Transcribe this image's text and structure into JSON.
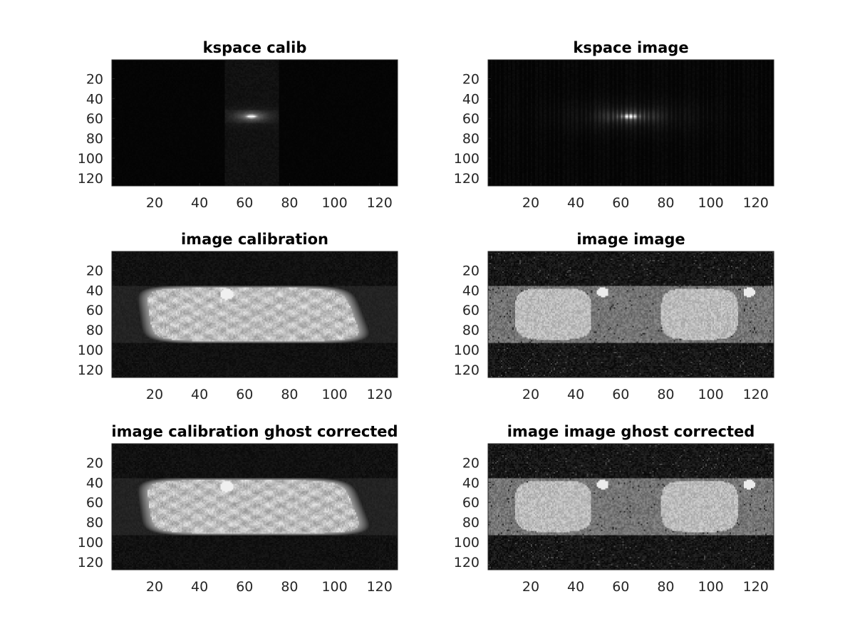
{
  "chart_data": [
    {
      "type": "heatmap",
      "id": "kspace_calib",
      "title": "kspace calib",
      "colormap": "gray",
      "xlim": [
        1,
        128
      ],
      "ylim": [
        1,
        128
      ],
      "y_reversed": true,
      "xticks": [
        20,
        40,
        60,
        80,
        100,
        120
      ],
      "yticks": [
        20,
        40,
        60,
        80,
        100,
        120
      ],
      "content": "kspace",
      "kspace_band": [
        51,
        75
      ],
      "peak": [
        63,
        58
      ]
    },
    {
      "type": "heatmap",
      "id": "kspace_image",
      "title": "kspace image",
      "colormap": "gray",
      "xlim": [
        1,
        128
      ],
      "ylim": [
        1,
        128
      ],
      "y_reversed": true,
      "xticks": [
        20,
        40,
        60,
        80,
        100,
        120
      ],
      "yticks": [
        20,
        40,
        60,
        80,
        100,
        120
      ],
      "content": "kspace-undersampled",
      "peak": [
        64,
        58
      ]
    },
    {
      "type": "heatmap",
      "id": "image_calibration",
      "title": "image calibration",
      "colormap": "gray",
      "xlim": [
        1,
        128
      ],
      "ylim": [
        1,
        128
      ],
      "y_reversed": true,
      "xticks": [
        20,
        40,
        60,
        80,
        100,
        120
      ],
      "yticks": [
        20,
        40,
        60,
        80,
        100,
        120
      ],
      "content": "image-blur",
      "band_rows": [
        35,
        94
      ]
    },
    {
      "type": "heatmap",
      "id": "image_image",
      "title": "image image",
      "colormap": "gray",
      "xlim": [
        1,
        128
      ],
      "ylim": [
        1,
        128
      ],
      "y_reversed": true,
      "xticks": [
        20,
        40,
        60,
        80,
        100,
        120
      ],
      "yticks": [
        20,
        40,
        60,
        80,
        100,
        120
      ],
      "content": "image-aliased",
      "band_rows": [
        35,
        94
      ]
    },
    {
      "type": "heatmap",
      "id": "image_calibration_ghost_corrected",
      "title": "image calibration ghost corrected",
      "colormap": "gray",
      "xlim": [
        1,
        128
      ],
      "ylim": [
        1,
        128
      ],
      "y_reversed": true,
      "xticks": [
        20,
        40,
        60,
        80,
        100,
        120
      ],
      "yticks": [
        20,
        40,
        60,
        80,
        100,
        120
      ],
      "content": "image-blur",
      "band_rows": [
        35,
        94
      ]
    },
    {
      "type": "heatmap",
      "id": "image_image_ghost_corrected",
      "title": "image image ghost corrected",
      "colormap": "gray",
      "xlim": [
        1,
        128
      ],
      "ylim": [
        1,
        128
      ],
      "y_reversed": true,
      "xticks": [
        20,
        40,
        60,
        80,
        100,
        120
      ],
      "yticks": [
        20,
        40,
        60,
        80,
        100,
        120
      ],
      "content": "image-aliased",
      "band_rows": [
        35,
        94
      ]
    }
  ]
}
